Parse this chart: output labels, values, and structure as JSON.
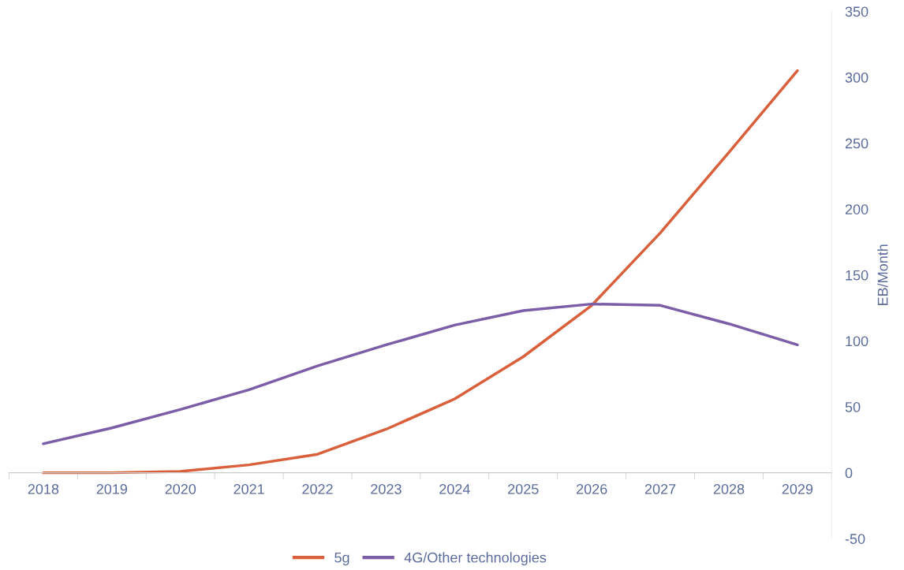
{
  "chart_data": {
    "type": "line",
    "ylabel": "EB/Month",
    "categories": [
      "2018",
      "2019",
      "2020",
      "2021",
      "2022",
      "2023",
      "2024",
      "2025",
      "2026",
      "2027",
      "2028",
      "2029"
    ],
    "series": [
      {
        "name": "5g",
        "color": "#d9603b",
        "values": [
          0,
          0,
          1,
          6,
          14,
          33,
          56,
          88,
          127,
          182,
          243,
          305
        ]
      },
      {
        "name": "4G/Other technologies",
        "color": "#7b5ea7",
        "values": [
          22,
          34,
          48,
          63,
          81,
          97,
          112,
          123,
          128,
          127,
          113,
          97
        ]
      }
    ],
    "ylim": [
      -50,
      350
    ],
    "yticks": [
      -50,
      0,
      50,
      100,
      150,
      200,
      250,
      300,
      350
    ],
    "grid": false,
    "legend": "bottom",
    "marker": "none",
    "line_style": "solid"
  }
}
